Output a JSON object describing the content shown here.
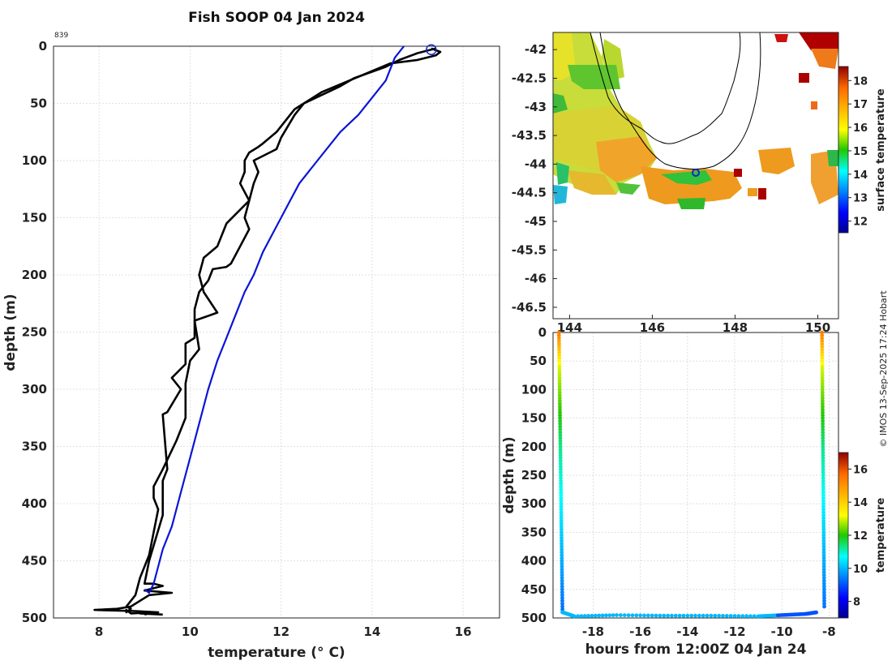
{
  "title": "Fish SOOP 04 Jan 2024",
  "profile_id": "839",
  "credit": "© IMOS 13-Sep-2025 17:24 Hobart",
  "colors": {
    "observed": "#000000",
    "climatology": "#0a14d6",
    "marker": "#1428c8"
  },
  "chart_data": [
    {
      "type": "line",
      "name": "temperature-profile",
      "xlabel": "temperature (° C)",
      "ylabel": "depth (m)",
      "xlim": [
        7,
        16.8
      ],
      "ylim": [
        0,
        500
      ],
      "xticks": [
        8,
        10,
        12,
        14,
        16
      ],
      "yticks": [
        0,
        50,
        100,
        150,
        200,
        250,
        300,
        350,
        400,
        450,
        500
      ],
      "grid": true,
      "series": [
        {
          "name": "profile-down",
          "color": "#000000",
          "x": [
            15.3,
            15.5,
            15.4,
            15.0,
            14.4,
            13.8,
            12.9,
            12.3,
            12.1,
            11.9,
            11.6,
            11.5,
            11.3,
            11.2,
            11.2,
            11.1,
            11.3,
            10.8,
            10.6,
            10.3,
            10.2,
            10.3,
            10.6,
            10.1,
            10.2,
            10.0,
            9.9,
            9.9,
            9.7,
            9.4,
            9.2,
            9.2,
            9.3,
            9.2,
            9.1,
            8.9,
            8.8,
            8.6,
            8.7,
            8.6,
            8.6,
            8.7,
            9.2,
            9.0
          ],
          "y": [
            2,
            5,
            8,
            12,
            15,
            25,
            40,
            55,
            65,
            75,
            85,
            88,
            93,
            100,
            110,
            120,
            135,
            155,
            175,
            185,
            200,
            215,
            233,
            240,
            265,
            275,
            295,
            325,
            345,
            370,
            385,
            395,
            405,
            425,
            445,
            465,
            480,
            490,
            492,
            495,
            493,
            496,
            495,
            497
          ]
        },
        {
          "name": "profile-up",
          "color": "#000000",
          "x": [
            15.4,
            15.0,
            14.6,
            14.3,
            13.6,
            13.3,
            12.5,
            12.3,
            12.0,
            11.9,
            11.4,
            11.5,
            11.4,
            11.2,
            11.3,
            11.1,
            10.9,
            10.8,
            10.5,
            10.4,
            10.2,
            10.1,
            10.1,
            10.1,
            9.9,
            9.9,
            9.6,
            9.8,
            9.5,
            9.4,
            9.5,
            9.4,
            9.4,
            9.1,
            9.0,
            9.2,
            9.4,
            9.2,
            9.0,
            9.6,
            9.1,
            8.7,
            8.4,
            7.9,
            8.8,
            9.3,
            8.9,
            9.4
          ],
          "y": [
            2,
            6,
            12,
            18,
            28,
            35,
            50,
            60,
            80,
            90,
            100,
            110,
            120,
            150,
            160,
            175,
            190,
            193,
            195,
            205,
            215,
            230,
            245,
            255,
            260,
            278,
            290,
            300,
            320,
            322,
            370,
            380,
            410,
            450,
            470,
            470,
            472,
            474,
            476,
            478,
            480,
            490,
            492,
            493,
            494,
            495,
            496,
            497
          ]
        },
        {
          "name": "climatology",
          "color": "#0a14d6",
          "x": [
            14.7,
            14.5,
            14.4,
            14.3,
            14.0,
            13.7,
            13.3,
            13.0,
            12.7,
            12.4,
            12.2,
            12.0,
            11.8,
            11.6,
            11.4,
            11.2,
            11.0,
            10.8,
            10.6,
            10.4,
            10.2,
            10.0,
            9.8,
            9.6,
            9.4,
            9.3,
            9.2,
            9.1,
            9.0
          ],
          "y": [
            0,
            10,
            20,
            30,
            45,
            60,
            75,
            90,
            105,
            120,
            135,
            150,
            165,
            180,
            200,
            215,
            235,
            255,
            275,
            300,
            330,
            360,
            390,
            420,
            440,
            455,
            470,
            478,
            475
          ]
        }
      ],
      "marker": {
        "x": 15.3,
        "y": 3
      }
    },
    {
      "type": "heatmap",
      "name": "sst-map",
      "xlim": [
        143.6,
        150.5
      ],
      "ylim": [
        -46.7,
        -41.7
      ],
      "xticks": [
        144,
        146,
        148,
        150
      ],
      "yticks": [
        -42,
        -42.5,
        -43,
        -43.5,
        -44,
        -44.5,
        -45,
        -45.5,
        -46,
        -46.5
      ],
      "colorbar": {
        "label": "surface temperature",
        "range": [
          11.5,
          18.6
        ],
        "ticks": [
          12,
          13,
          14,
          15,
          16,
          17,
          18
        ]
      },
      "station": {
        "lon": 147.05,
        "lat": -44.15
      }
    },
    {
      "type": "scatter",
      "name": "depth-time-track",
      "xlabel": "hours from 12:00Z 04 Jan 24",
      "ylabel": "depth (m)",
      "xlim": [
        -19.7,
        -7.6
      ],
      "ylim": [
        0,
        500
      ],
      "xticks": [
        -18,
        -16,
        -14,
        -12,
        -10,
        -8
      ],
      "yticks": [
        0,
        50,
        100,
        150,
        200,
        250,
        300,
        350,
        400,
        450,
        500
      ],
      "colorbar": {
        "label": "temperature",
        "range": [
          7,
          17
        ],
        "ticks": [
          8,
          10,
          12,
          14,
          16
        ]
      },
      "descent": {
        "start_h": -19.45,
        "end_h": -19.3,
        "bottom_depth": 490
      },
      "ascent": {
        "start_h": -8.3,
        "end_h": -8.2,
        "bottom_depth": 480
      },
      "bottom_track": {
        "h": [
          -19.3,
          -18.8,
          -17,
          -15,
          -13,
          -11,
          -10,
          -9,
          -8.5
        ],
        "depth": [
          490,
          497,
          495,
          496,
          496,
          497,
          495,
          493,
          490
        ]
      }
    }
  ]
}
